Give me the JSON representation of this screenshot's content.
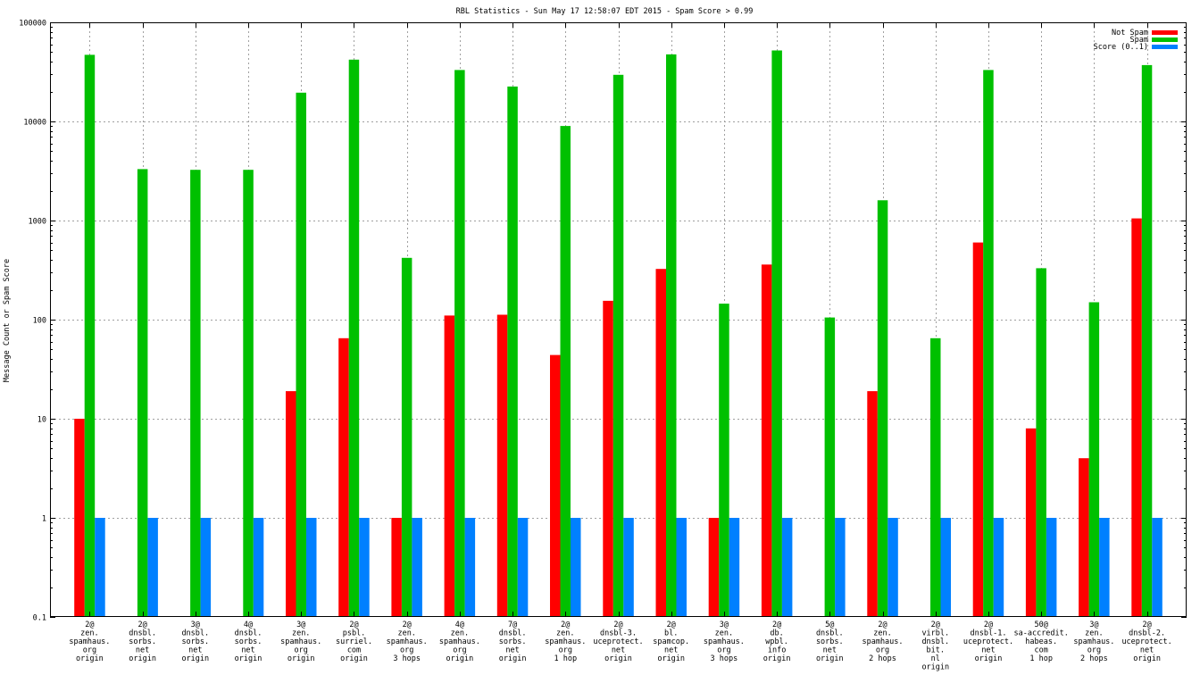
{
  "chart_data": {
    "type": "bar",
    "title": "RBL Statistics - Sun May 17 12:58:07 EDT 2015 - Spam Score > 0.99",
    "xlabel": "",
    "ylabel": "Message Count or Spam Score",
    "yscale": "log",
    "ylim": [
      0.1,
      100000
    ],
    "yticks": [
      0.1,
      1,
      10,
      100,
      1000,
      10000,
      100000
    ],
    "ytick_labels": [
      "0.1",
      "1",
      "10",
      "100",
      "1000",
      "10000",
      "100000"
    ],
    "grid": true,
    "legend_position": "top-right",
    "categories": [
      [
        "2@",
        "zen.",
        "spamhaus.",
        "org",
        "origin"
      ],
      [
        "2@",
        "dnsbl.",
        "sorbs.",
        "net",
        "origin"
      ],
      [
        "3@",
        "dnsbl.",
        "sorbs.",
        "net",
        "origin"
      ],
      [
        "4@",
        "dnsbl.",
        "sorbs.",
        "net",
        "origin"
      ],
      [
        "3@",
        "zen.",
        "spamhaus.",
        "org",
        "origin"
      ],
      [
        "2@",
        "psbl.",
        "surriel.",
        "com",
        "origin"
      ],
      [
        "2@",
        "zen.",
        "spamhaus.",
        "org",
        "3 hops"
      ],
      [
        "4@",
        "zen.",
        "spamhaus.",
        "org",
        "origin"
      ],
      [
        "7@",
        "dnsbl.",
        "sorbs.",
        "net",
        "origin"
      ],
      [
        "2@",
        "zen.",
        "spamhaus.",
        "org",
        "1 hop"
      ],
      [
        "2@",
        "dnsbl-3.",
        "uceprotect.",
        "net",
        "origin"
      ],
      [
        "2@",
        "bl.",
        "spamcop.",
        "net",
        "origin"
      ],
      [
        "3@",
        "zen.",
        "spamhaus.",
        "org",
        "3 hops"
      ],
      [
        "2@",
        "db.",
        "wpbl.",
        "info",
        "origin"
      ],
      [
        "5@",
        "dnsbl.",
        "sorbs.",
        "net",
        "origin"
      ],
      [
        "2@",
        "zen.",
        "spamhaus.",
        "org",
        "2 hops"
      ],
      [
        "2@",
        "virbl.",
        "dnsbl.",
        "bit.",
        "nl",
        "origin"
      ],
      [
        "2@",
        "dnsbl-1.",
        "uceprotect.",
        "net",
        "origin"
      ],
      [
        "50@",
        "sa-accredit.",
        "habeas.",
        "com",
        "1 hop"
      ],
      [
        "3@",
        "zen.",
        "spamhaus.",
        "org",
        "2 hops"
      ],
      [
        "2@",
        "dnsbl-2.",
        "uceprotect.",
        "net",
        "origin"
      ]
    ],
    "series": [
      {
        "name": "Not Spam",
        "color": "#ff0000",
        "values": [
          10,
          null,
          null,
          null,
          19,
          65,
          1,
          110,
          112,
          44,
          155,
          325,
          1,
          360,
          null,
          19,
          null,
          600,
          8,
          4,
          1050
        ]
      },
      {
        "name": "Spam",
        "color": "#00c000",
        "values": [
          47000,
          3300,
          3250,
          3250,
          19500,
          42000,
          420,
          33000,
          22500,
          9000,
          29500,
          47500,
          145,
          52000,
          105,
          1600,
          65,
          33000,
          330,
          150,
          37000
        ]
      },
      {
        "name": "Score (0..1)",
        "color": "#0080ff",
        "values": [
          1,
          1,
          1,
          1,
          1,
          1,
          1,
          1,
          1,
          1,
          1,
          1,
          1,
          1,
          1,
          1,
          1,
          1,
          1,
          1,
          1
        ]
      }
    ]
  }
}
